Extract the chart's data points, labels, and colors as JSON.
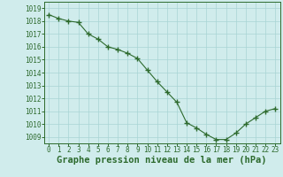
{
  "x": [
    0,
    1,
    2,
    3,
    4,
    5,
    6,
    7,
    8,
    9,
    10,
    11,
    12,
    13,
    14,
    15,
    16,
    17,
    18,
    19,
    20,
    21,
    22,
    23
  ],
  "y": [
    1018.5,
    1018.2,
    1018.0,
    1017.9,
    1017.0,
    1016.6,
    1016.0,
    1015.8,
    1015.5,
    1015.1,
    1014.2,
    1013.3,
    1012.5,
    1011.7,
    1010.1,
    1009.7,
    1009.2,
    1008.8,
    1008.8,
    1009.3,
    1010.0,
    1010.5,
    1011.0,
    1011.2
  ],
  "line_color": "#2d6a2d",
  "marker_color": "#2d6a2d",
  "bg_color": "#d0ecec",
  "grid_color": "#a8d4d4",
  "text_color": "#2d6a2d",
  "xlabel": "Graphe pression niveau de la mer (hPa)",
  "ylim_min": 1008.5,
  "ylim_max": 1019.5,
  "yticks": [
    1009,
    1010,
    1011,
    1012,
    1013,
    1014,
    1015,
    1016,
    1017,
    1018,
    1019
  ],
  "xticks": [
    0,
    1,
    2,
    3,
    4,
    5,
    6,
    7,
    8,
    9,
    10,
    11,
    12,
    13,
    14,
    15,
    16,
    17,
    18,
    19,
    20,
    21,
    22,
    23
  ],
  "tick_fontsize": 5.5,
  "label_fontsize": 7.5
}
